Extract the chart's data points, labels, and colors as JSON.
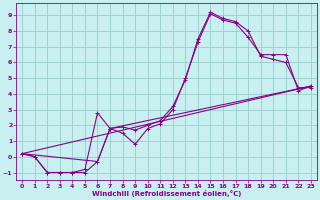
{
  "xlabel": "Windchill (Refroidissement éolien,°C)",
  "bg_color": "#c8f0f0",
  "line_color": "#880088",
  "grid_color": "#99cccc",
  "xlim": [
    -0.5,
    23.5
  ],
  "ylim": [
    -1.5,
    9.8
  ],
  "xticks": [
    0,
    1,
    2,
    3,
    4,
    5,
    6,
    7,
    8,
    9,
    10,
    11,
    12,
    13,
    14,
    15,
    16,
    17,
    18,
    19,
    20,
    21,
    22,
    23
  ],
  "yticks": [
    -1,
    0,
    1,
    2,
    3,
    4,
    5,
    6,
    7,
    8,
    9
  ],
  "line1_x": [
    0,
    1,
    2,
    3,
    4,
    5,
    6,
    7,
    8,
    9,
    10,
    11,
    12,
    13,
    14,
    15,
    16,
    17,
    18,
    19,
    20,
    21,
    22,
    23
  ],
  "line1_y": [
    0.2,
    0.0,
    -1.0,
    -1.0,
    -1.0,
    -0.8,
    2.8,
    1.8,
    1.5,
    0.8,
    1.8,
    2.1,
    3.0,
    5.0,
    7.3,
    9.1,
    8.7,
    8.5,
    7.6,
    6.5,
    6.5,
    6.5,
    4.2,
    4.5
  ],
  "line2_x": [
    0,
    1,
    2,
    3,
    4,
    5,
    6,
    7,
    8,
    9,
    10,
    11,
    12,
    13,
    14,
    15,
    16,
    17,
    18,
    19,
    20,
    21,
    22,
    23
  ],
  "line2_y": [
    0.2,
    0.0,
    -1.0,
    -1.0,
    -1.0,
    -1.0,
    -0.3,
    1.8,
    1.9,
    1.7,
    2.0,
    2.3,
    3.2,
    4.9,
    7.5,
    9.2,
    8.8,
    8.6,
    8.0,
    6.4,
    6.2,
    6.0,
    4.4,
    4.4
  ],
  "line3_x": [
    0,
    23
  ],
  "line3_y": [
    0.2,
    4.5
  ],
  "line4_x": [
    0,
    6,
    7,
    23
  ],
  "line4_y": [
    0.2,
    -0.3,
    1.8,
    4.5
  ]
}
